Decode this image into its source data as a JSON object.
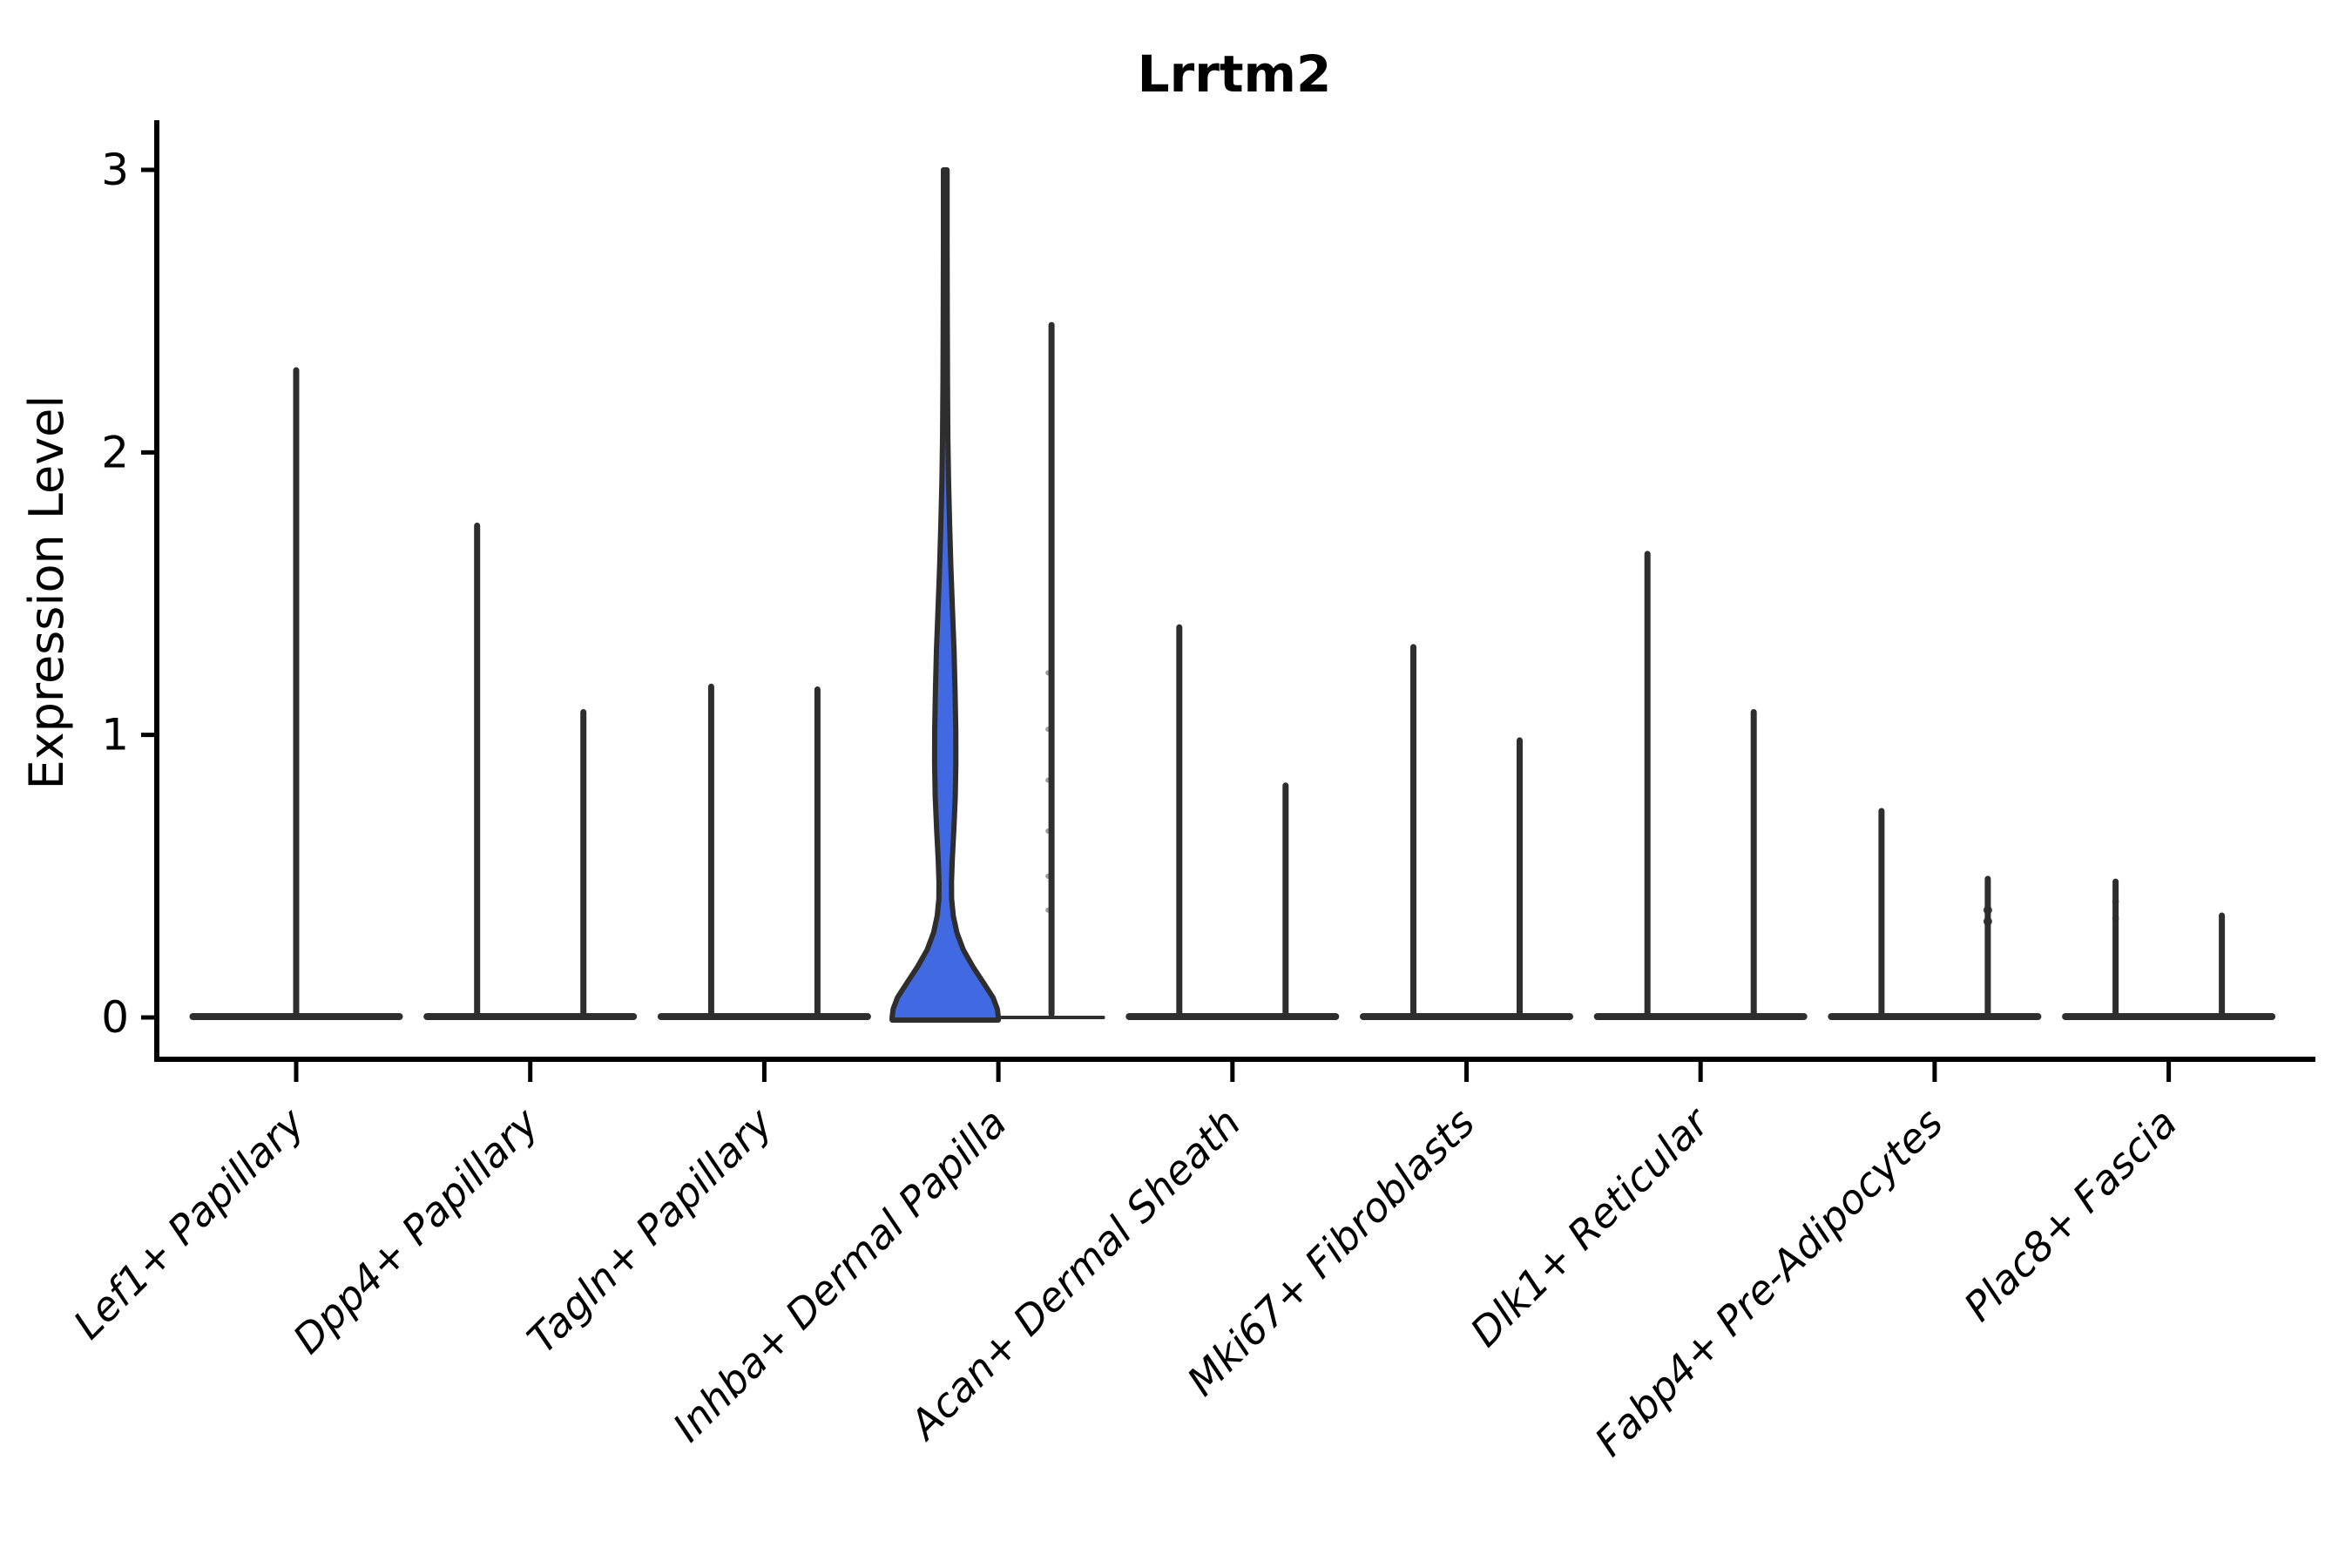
{
  "chart_data": {
    "type": "violin",
    "title": "Lrrtm2",
    "ylabel": "Expression Level",
    "xlabel": "",
    "ylim": [
      0,
      3
    ],
    "yticks": [
      0,
      1,
      2,
      3
    ],
    "grid": false,
    "legend": "none",
    "colors": {
      "outline": "#2e2e2e",
      "axis": "#000000",
      "highlight_fill": "#4169e1",
      "background": "#ffffff"
    },
    "categories": [
      {
        "label": "Lef1+ Papillary",
        "violins": [
          {
            "pos": "center",
            "kind": "spike",
            "max": 2.3
          }
        ]
      },
      {
        "label": "Dpp4+ Papillary",
        "violins": [
          {
            "pos": "left",
            "kind": "spike",
            "max": 1.75
          },
          {
            "pos": "right",
            "kind": "spike",
            "max": 1.09
          }
        ]
      },
      {
        "label": "Tagln+ Papillary",
        "violins": [
          {
            "pos": "left",
            "kind": "spike",
            "max": 1.18
          },
          {
            "pos": "right",
            "kind": "spike",
            "max": 1.17
          }
        ]
      },
      {
        "label": "Inhba+ Dermal Papilla",
        "violins": [
          {
            "pos": "left",
            "kind": "density",
            "max": 3.0,
            "fill": "#4169e1",
            "profile": [
              [
                3.0,
                0.035
              ],
              [
                2.75,
                0.035
              ],
              [
                2.5,
                0.038
              ],
              [
                2.25,
                0.042
              ],
              [
                2.05,
                0.05
              ],
              [
                1.9,
                0.062
              ],
              [
                1.75,
                0.082
              ],
              [
                1.6,
                0.105
              ],
              [
                1.45,
                0.135
              ],
              [
                1.3,
                0.165
              ],
              [
                1.15,
                0.185
              ],
              [
                1.02,
                0.198
              ],
              [
                0.9,
                0.2
              ],
              [
                0.78,
                0.188
              ],
              [
                0.66,
                0.16
              ],
              [
                0.56,
                0.132
              ],
              [
                0.48,
                0.118
              ],
              [
                0.42,
                0.12
              ],
              [
                0.36,
                0.15
              ],
              [
                0.3,
                0.22
              ],
              [
                0.24,
                0.34
              ],
              [
                0.18,
                0.52
              ],
              [
                0.12,
                0.73
              ],
              [
                0.07,
                0.9
              ],
              [
                0.03,
                0.98
              ],
              [
                0.0,
                1.0
              ]
            ]
          },
          {
            "pos": "right",
            "kind": "spike",
            "max": 2.46,
            "thin_base": true,
            "points": [
              1.22,
              1.02,
              0.84,
              0.66,
              0.5,
              0.38
            ],
            "point_size": 3,
            "point_opacity": 0.45
          }
        ]
      },
      {
        "label": "Acan+ Dermal Sheath",
        "violins": [
          {
            "pos": "left",
            "kind": "spike",
            "max": 1.39
          },
          {
            "pos": "right",
            "kind": "spike",
            "max": 0.83
          }
        ]
      },
      {
        "label": "Mki67+ Fibroblasts",
        "violins": [
          {
            "pos": "left",
            "kind": "spike",
            "max": 1.32
          },
          {
            "pos": "right",
            "kind": "spike",
            "max": 0.99
          }
        ]
      },
      {
        "label": "Dlk1+ Reticular",
        "violins": [
          {
            "pos": "left",
            "kind": "spike",
            "max": 1.65
          },
          {
            "pos": "right",
            "kind": "spike",
            "max": 1.09
          }
        ]
      },
      {
        "label": "Fabp4+ Pre-Adipocytes",
        "violins": [
          {
            "pos": "left",
            "kind": "spike",
            "max": 0.74
          },
          {
            "pos": "right",
            "kind": "spike",
            "max": 0.5,
            "points": [
              0.38,
              0.34
            ],
            "point_size": 5,
            "point_opacity": 0.9
          }
        ]
      },
      {
        "label": "Plac8+ Fascia",
        "violins": [
          {
            "pos": "left",
            "kind": "spike",
            "max": 0.49,
            "points": [
              0.41,
              0.35
            ],
            "point_size": 4,
            "point_opacity": 0.55
          },
          {
            "pos": "right",
            "kind": "spike",
            "max": 0.37
          }
        ]
      }
    ]
  }
}
